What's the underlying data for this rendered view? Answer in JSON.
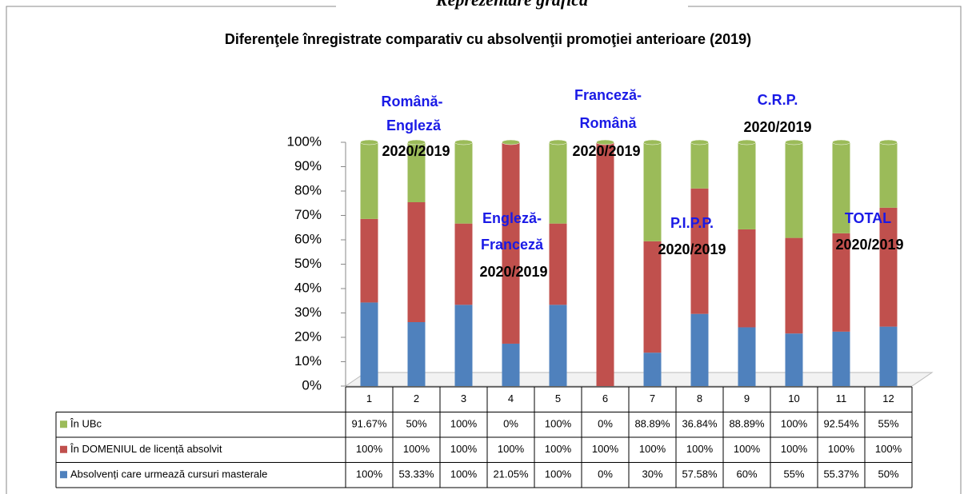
{
  "chart_data": {
    "type": "stacked_bar_100",
    "subtitle": "Reprezentare grafică",
    "title": "Diferenţele înregistrate comparativ cu absolvenţii promoţiei anterioare (2019)",
    "categories": [
      "1",
      "2",
      "3",
      "4",
      "5",
      "6",
      "7",
      "8",
      "9",
      "10",
      "11",
      "12"
    ],
    "series": [
      {
        "name": "Absolvenți care urmează cursuri masterale",
        "color": "#4f81bd",
        "values": [
          100,
          53.33,
          100,
          21.05,
          100,
          0,
          30,
          57.58,
          60,
          55,
          55.37,
          50
        ],
        "value_labels": [
          "100%",
          "53.33%",
          "100%",
          "21.05%",
          "100%",
          "0%",
          "30%",
          "57.58%",
          "60%",
          "55%",
          "55.37%",
          "50%"
        ]
      },
      {
        "name": "În DOMENIUL de licență absolvit",
        "color": "#c0504d",
        "values": [
          100,
          100,
          100,
          100,
          100,
          100,
          100,
          100,
          100,
          100,
          100,
          100
        ],
        "value_labels": [
          "100%",
          "100%",
          "100%",
          "100%",
          "100%",
          "100%",
          "100%",
          "100%",
          "100%",
          "100%",
          "100%",
          "100%"
        ]
      },
      {
        "name": "În UBc",
        "color": "#9bbb59",
        "values": [
          91.67,
          50,
          100,
          0,
          100,
          0,
          88.89,
          36.84,
          88.89,
          100,
          92.54,
          55
        ],
        "value_labels": [
          "91.67%",
          "50%",
          "100%",
          "0%",
          "100%",
          "0%",
          "88.89%",
          "36.84%",
          "88.89%",
          "100%",
          "92.54%",
          "55%"
        ]
      }
    ],
    "ylim": [
      0,
      100
    ],
    "yticks": [
      {
        "value": 0,
        "label": "0%"
      },
      {
        "value": 10,
        "label": "10%"
      },
      {
        "value": 20,
        "label": "20%"
      },
      {
        "value": 30,
        "label": "30%"
      },
      {
        "value": 40,
        "label": "40%"
      },
      {
        "value": 50,
        "label": "50%"
      },
      {
        "value": 60,
        "label": "60%"
      },
      {
        "value": 70,
        "label": "70%"
      },
      {
        "value": 80,
        "label": "80%"
      },
      {
        "value": 90,
        "label": "90%"
      },
      {
        "value": 100,
        "label": "100%"
      }
    ],
    "annotations": [
      {
        "text": "Română-",
        "color": "#1a1ae6"
      },
      {
        "text": "Engleză",
        "color": "#1a1ae6"
      },
      {
        "text": "2020/2019",
        "color": "#000000"
      },
      {
        "text": "Engleză-",
        "color": "#1a1ae6"
      },
      {
        "text": "Franceză",
        "color": "#1a1ae6"
      },
      {
        "text": "2020/2019",
        "color": "#000000"
      },
      {
        "text": "Franceză-",
        "color": "#1a1ae6"
      },
      {
        "text": "Română",
        "color": "#1a1ae6"
      },
      {
        "text": "2020/2019",
        "color": "#000000"
      },
      {
        "text": "P.I.P.P.",
        "color": "#1a1ae6"
      },
      {
        "text": "2020/2019",
        "color": "#000000"
      },
      {
        "text": "C.R.P.",
        "color": "#1a1ae6"
      },
      {
        "text": "2020/2019",
        "color": "#000000"
      },
      {
        "text": "TOTAL",
        "color": "#1a1ae6"
      },
      {
        "text": "2020/2019",
        "color": "#000000"
      }
    ]
  }
}
